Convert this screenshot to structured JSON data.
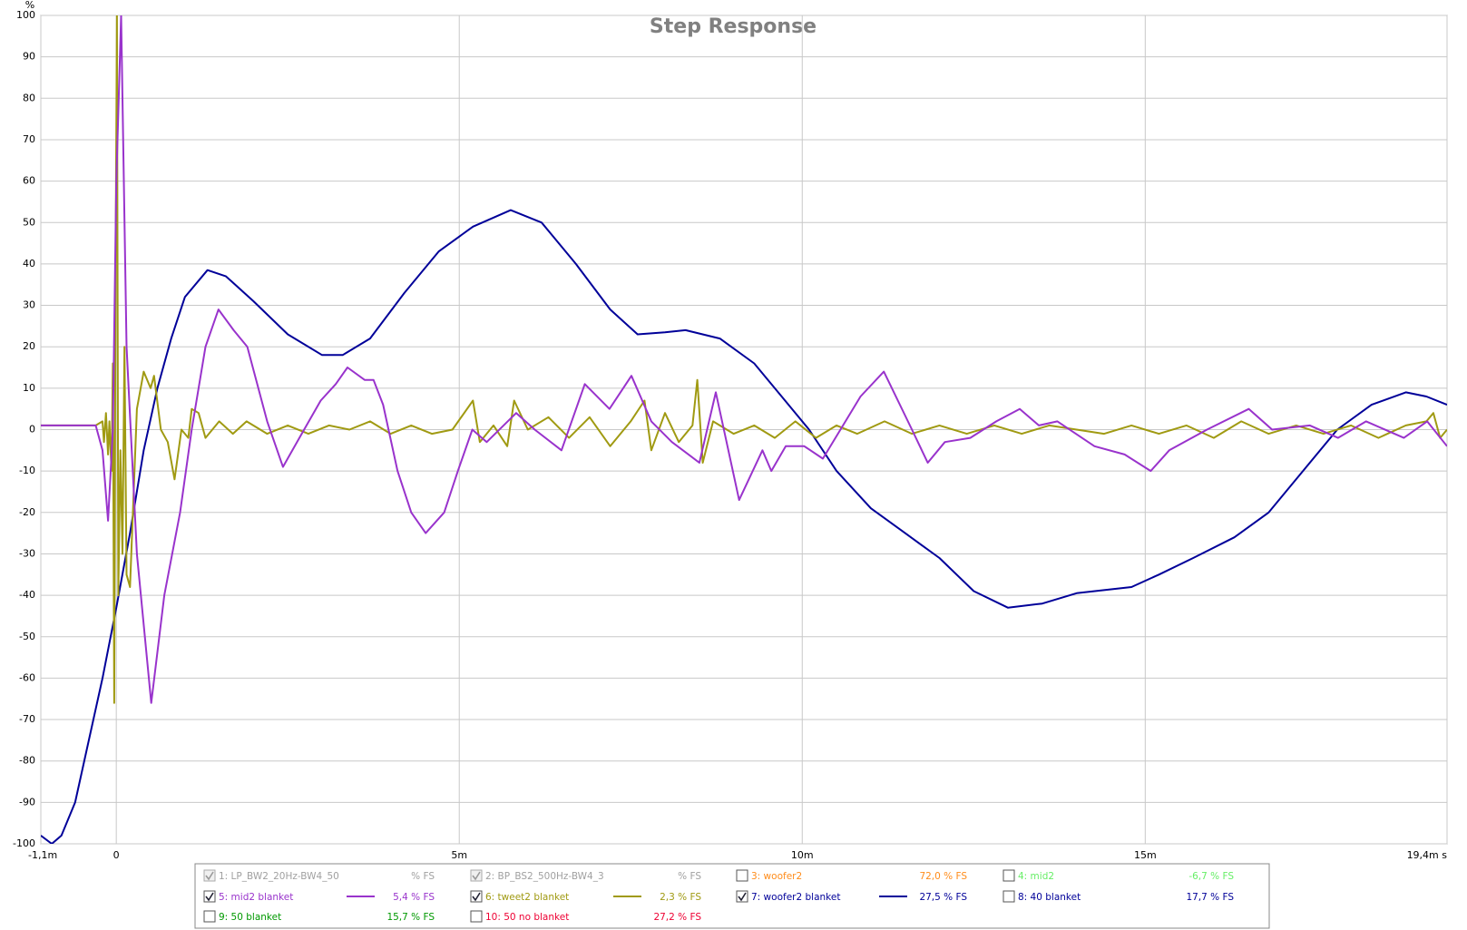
{
  "chart_data": {
    "type": "line",
    "title": "Step Response",
    "ylabel": "%",
    "xlim": [
      -1.1,
      19.4
    ],
    "ylim": [
      -100,
      100
    ],
    "xticks": [
      {
        "value": -1.1,
        "label": "-1,1m"
      },
      0,
      {
        "value": 5,
        "label": "5m"
      },
      {
        "value": 10,
        "label": "10m"
      },
      {
        "value": 15,
        "label": "15m"
      },
      {
        "value": 19.4,
        "label": "19,4m s"
      }
    ],
    "yticks": [
      -100,
      -90,
      -80,
      -70,
      -60,
      -50,
      -40,
      -30,
      -20,
      -10,
      0,
      10,
      20,
      30,
      40,
      50,
      60,
      70,
      80,
      90,
      100
    ],
    "grid": true,
    "series": [
      {
        "name": "1: LP_BW2_20Hz-BW4_50",
        "reading": "% FS",
        "color": "#a0a0a0",
        "checked": true,
        "enabled": false
      },
      {
        "name": "2: BP_BS2_500Hz-BW4_3",
        "reading": "% FS",
        "color": "#a0a0a0",
        "checked": true,
        "enabled": false
      },
      {
        "name": "3: woofer2",
        "reading": "72,0 % FS",
        "color": "#ff8c1a",
        "checked": false,
        "enabled": true
      },
      {
        "name": "4: mid2",
        "reading": "-6,7 % FS",
        "color": "#66ee66",
        "checked": false,
        "enabled": true
      },
      {
        "name": "5: mid2 blanket",
        "reading": "5,4 % FS",
        "color": "#9933cc",
        "checked": true,
        "enabled": true,
        "x": [
          -1.1,
          -0.5,
          -0.3,
          -0.2,
          -0.12,
          -0.05,
          0.0,
          0.07,
          0.15,
          0.3,
          0.51,
          0.7,
          0.93,
          1.1,
          1.3,
          1.49,
          1.71,
          1.91,
          2.2,
          2.43,
          2.67,
          2.98,
          3.2,
          3.37,
          3.62,
          3.75,
          3.89,
          4.1,
          4.3,
          4.51,
          4.78,
          4.98,
          5.19,
          5.4,
          5.83,
          6.1,
          6.49,
          6.83,
          7.19,
          7.51,
          7.8,
          8.1,
          8.5,
          8.74,
          9.08,
          9.42,
          9.55,
          9.76,
          10.03,
          10.3,
          10.85,
          11.19,
          11.6,
          11.83,
          12.08,
          12.45,
          12.83,
          13.17,
          13.45,
          13.72,
          14.26,
          14.7,
          15.08,
          15.35,
          15.9,
          16.51,
          16.85,
          17.4,
          17.81,
          18.22,
          18.77,
          19.11,
          19.4
        ],
        "values": [
          1,
          1,
          1,
          -5,
          -22,
          0,
          60,
          100,
          20,
          -30,
          -66,
          -40,
          -20,
          0,
          20,
          29,
          24,
          20,
          2,
          -9,
          -2,
          7,
          11,
          15,
          12,
          12,
          6,
          -10,
          -20,
          -25,
          -20,
          -10,
          0,
          -3,
          4,
          0,
          -5,
          11,
          5,
          13,
          2,
          -3,
          -8,
          9,
          -17,
          -5,
          -10,
          -4,
          -4,
          -7,
          8,
          14,
          0,
          -8,
          -3,
          -2,
          2,
          5,
          1,
          2,
          -4,
          -6,
          -10,
          -5,
          0,
          5,
          0,
          1,
          -2,
          2,
          -2,
          2,
          -4
        ]
      },
      {
        "name": "6: tweet2 blanket",
        "reading": "2,3 % FS",
        "color": "#a09a12",
        "checked": true,
        "enabled": true,
        "x": [
          -1.1,
          -0.3,
          -0.2,
          -0.18,
          -0.15,
          -0.12,
          -0.1,
          -0.07,
          -0.05,
          -0.03,
          -0.01,
          0.01,
          0.03,
          0.06,
          0.09,
          0.12,
          0.15,
          0.2,
          0.3,
          0.4,
          0.5,
          0.55,
          0.65,
          0.75,
          0.85,
          0.95,
          1.05,
          1.1,
          1.2,
          1.3,
          1.5,
          1.7,
          1.9,
          2.2,
          2.5,
          2.8,
          3.1,
          3.4,
          3.7,
          4.0,
          4.3,
          4.6,
          4.9,
          5.2,
          5.3,
          5.5,
          5.7,
          5.8,
          6.0,
          6.3,
          6.6,
          6.9,
          7.2,
          7.5,
          7.7,
          7.8,
          8.0,
          8.2,
          8.4,
          8.47,
          8.55,
          8.7,
          9.0,
          9.3,
          9.6,
          9.9,
          10.2,
          10.5,
          10.8,
          11.2,
          11.6,
          12.0,
          12.4,
          12.8,
          13.2,
          13.6,
          14.0,
          14.4,
          14.8,
          15.2,
          15.6,
          16.0,
          16.4,
          16.8,
          17.2,
          17.6,
          18.0,
          18.4,
          18.8,
          19.1,
          19.2,
          19.3,
          19.4
        ],
        "values": [
          1,
          1,
          2,
          -3,
          4,
          -6,
          2,
          -10,
          16,
          -66,
          40,
          100,
          -40,
          -5,
          -30,
          20,
          -35,
          -38,
          5,
          14,
          10,
          13,
          0,
          -3,
          -12,
          0,
          -2,
          5,
          4,
          -2,
          2,
          -1,
          2,
          -1,
          1,
          -1,
          1,
          0,
          2,
          -1,
          1,
          -1,
          0,
          7,
          -3,
          1,
          -4,
          7,
          0,
          3,
          -2,
          3,
          -4,
          2,
          7,
          -5,
          4,
          -3,
          1,
          12,
          -8,
          2,
          -1,
          1,
          -2,
          2,
          -2,
          1,
          -1,
          2,
          -1,
          1,
          -1,
          1,
          -1,
          1,
          0,
          -1,
          1,
          -1,
          1,
          -2,
          2,
          -1,
          1,
          -1,
          1,
          -2,
          1,
          2,
          4,
          -2,
          0
        ]
      },
      {
        "name": "7: woofer2 blanket",
        "reading": "27,5 % FS",
        "color": "#000099",
        "checked": true,
        "enabled": true,
        "x": [
          -1.1,
          -0.94,
          -0.8,
          -0.6,
          -0.4,
          -0.2,
          0,
          0.2,
          0.4,
          0.6,
          0.8,
          1.0,
          1.33,
          1.6,
          2.0,
          2.5,
          3.0,
          3.3,
          3.7,
          4.2,
          4.7,
          5.2,
          5.75,
          6.2,
          6.7,
          7.2,
          7.6,
          8.0,
          8.3,
          8.8,
          9.3,
          9.7,
          10.1,
          10.5,
          11.0,
          11.5,
          12.0,
          12.5,
          13.0,
          13.5,
          14.0,
          14.8,
          15.2,
          15.7,
          16.3,
          16.8,
          17.3,
          17.8,
          18.3,
          18.8,
          19.1,
          19.4
        ],
        "values": [
          -98,
          -100,
          -98,
          -90,
          -75,
          -60,
          -43,
          -25,
          -5,
          10,
          22,
          32,
          38.5,
          37,
          31,
          23,
          18,
          18,
          22,
          33,
          43,
          49,
          53,
          50,
          40,
          29,
          23,
          23.5,
          24,
          22,
          16,
          8,
          0,
          -10,
          -19,
          -25,
          -31,
          -39,
          -43,
          -42,
          -39.5,
          -38,
          -35,
          -31,
          -26,
          -20,
          -10,
          0,
          6,
          9,
          8,
          6
        ]
      },
      {
        "name": "8: 40 blanket",
        "reading": "17,7 % FS",
        "color": "#000099",
        "checked": false,
        "enabled": true
      },
      {
        "name": "9: 50 blanket",
        "reading": "15,7 % FS",
        "color": "#009900",
        "checked": false,
        "enabled": true
      },
      {
        "name": "10: 50 no blanket",
        "reading": "27,2 % FS",
        "color": "#ee0033",
        "checked": false,
        "enabled": true
      }
    ]
  }
}
